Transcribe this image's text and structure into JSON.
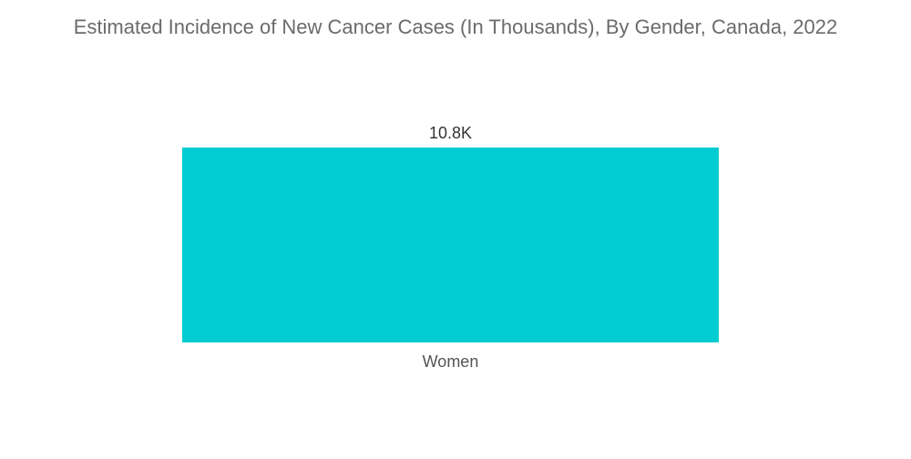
{
  "chart_data": {
    "type": "bar",
    "title": "Estimated Incidence of New Cancer Cases (In Thousands), By Gender, Canada, 2022",
    "categories": [
      "Women"
    ],
    "values": [
      10.8
    ],
    "value_labels": [
      "10.8K"
    ],
    "xlabel": "",
    "ylabel": "",
    "ylim": [
      0,
      10.8
    ],
    "grid": false,
    "legend": "none",
    "bar_color": "#00ccd1"
  }
}
